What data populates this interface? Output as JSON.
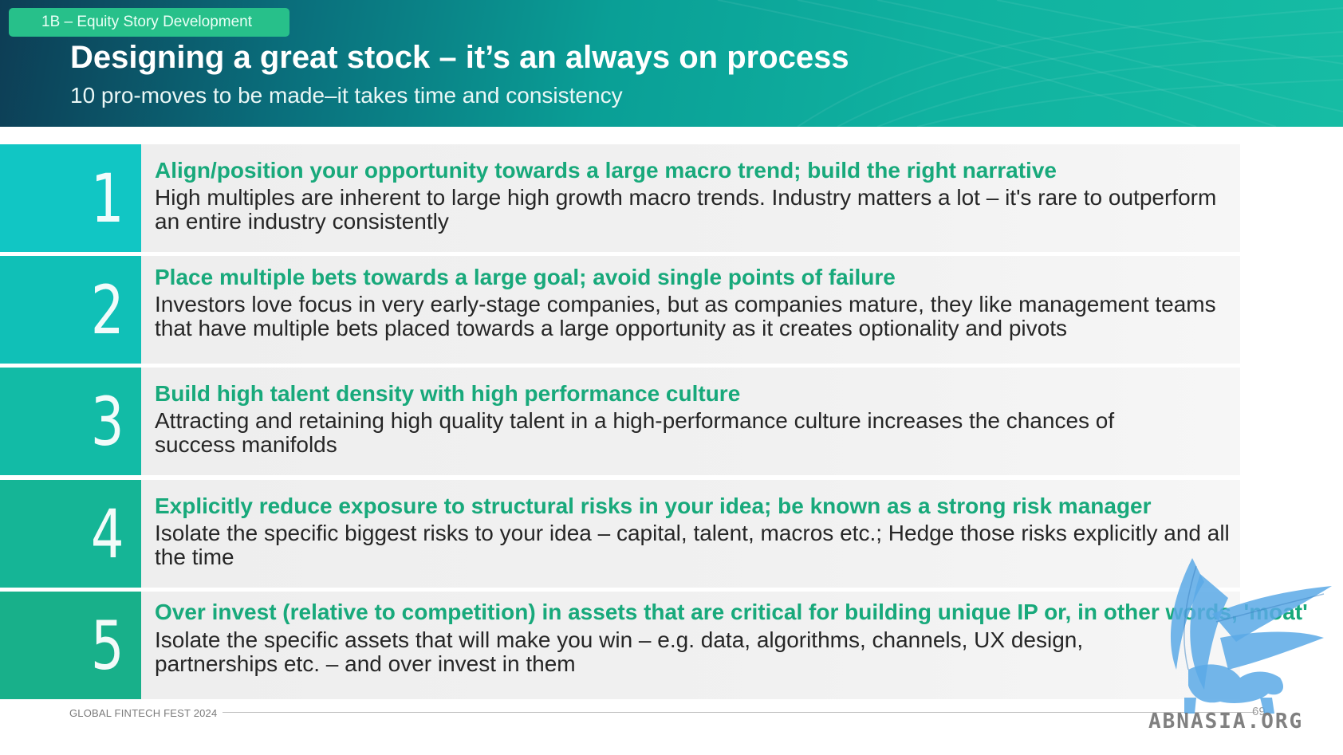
{
  "header": {
    "section_tag": "1B – Equity Story Development",
    "title": "Designing a great stock – it’s an always on process",
    "subtitle": "10 pro-moves to be made–it takes time and consistency"
  },
  "items": [
    {
      "number": "1",
      "heading": "Align/position your opportunity towards a large macro trend; build the right narrative",
      "body": "High multiples are inherent to large high growth macro trends. Industry matters a lot – it's rare to outperform an entire industry consistently",
      "color": "#11c6c4"
    },
    {
      "number": "2",
      "heading": "Place multiple bets towards a large goal; avoid single points of failure",
      "body": "Investors love focus in very early-stage companies, but as companies mature, they like management teams that have multiple bets placed towards a large opportunity as it creates optionality and pivots",
      "color": "#10c0b7"
    },
    {
      "number": "3",
      "heading": "Build high talent density with high performance culture",
      "body": "Attracting and retaining high quality talent in a high-performance culture increases the chances of success manifolds",
      "color": "#12bba6"
    },
    {
      "number": "4",
      "heading": "Explicitly reduce exposure to structural risks in your idea; be known as a strong risk manager",
      "body": "Isolate the specific biggest risks to your idea – capital, talent, macros etc.; Hedge those risks explicitly and all the time",
      "color": "#15b596"
    },
    {
      "number": "5",
      "heading": "Over invest (relative to competition) in assets that are critical for building unique IP or, in other words, 'moat'",
      "body": "Isolate the specific assets that will make you win – e.g. data, algorithms, channels, UX design, partnerships etc. – and over invest in them",
      "color": "#18b08a"
    }
  ],
  "footer": {
    "event": "GLOBAL FINTECH FEST 2024",
    "page_number": "69"
  },
  "watermark": {
    "text": "ABNASIA.ORG",
    "icon": "griffin-logo-icon",
    "color": "#5aa9e6"
  }
}
